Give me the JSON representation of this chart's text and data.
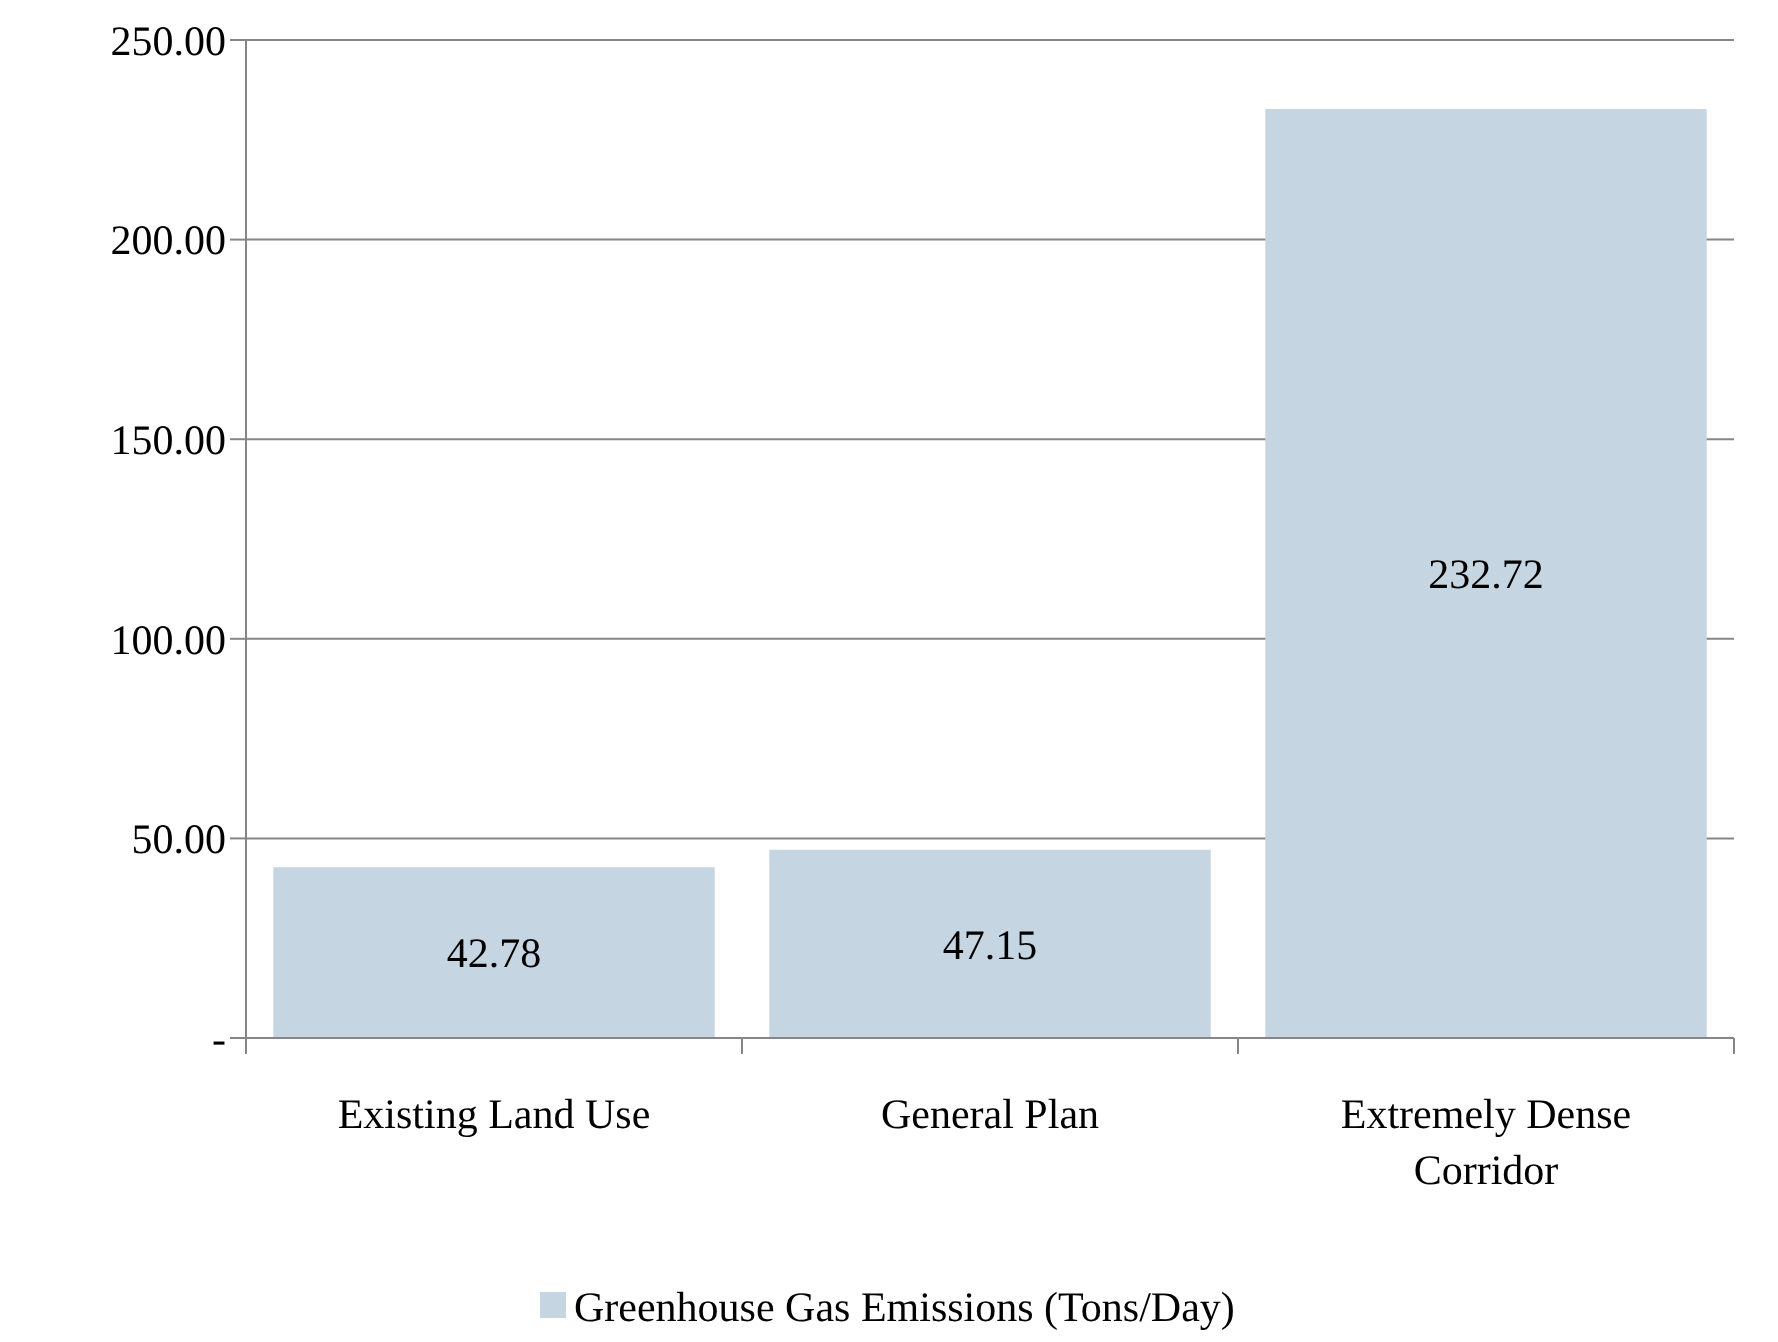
{
  "chart_data": {
    "type": "bar",
    "categories": [
      "Existing Land Use",
      "General Plan",
      "Extremely Dense Corridor"
    ],
    "series": [
      {
        "name": "Greenhouse Gas Emissions (Tons/Day)",
        "color": "#c5d5e1",
        "values": [
          42.78,
          47.15,
          232.72
        ]
      }
    ],
    "ylim": [
      0,
      250
    ],
    "yticks": [
      {
        "value": 0,
        "label": "-"
      },
      {
        "value": 50,
        "label": "50.00"
      },
      {
        "value": 100,
        "label": "100.00"
      },
      {
        "value": 150,
        "label": "150.00"
      },
      {
        "value": 200,
        "label": "200.00"
      },
      {
        "value": 250,
        "label": "250.00"
      }
    ],
    "grid": "y",
    "legend": "bottom",
    "data_labels": true
  }
}
